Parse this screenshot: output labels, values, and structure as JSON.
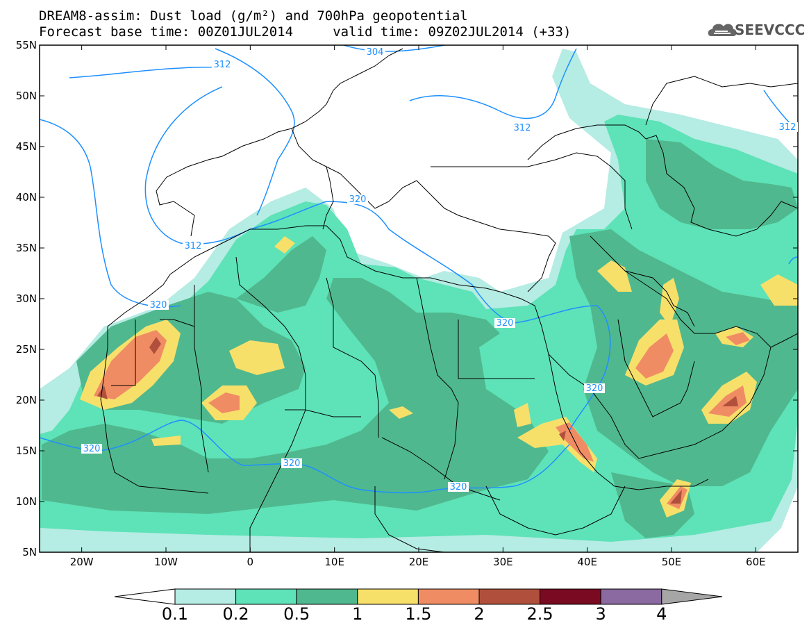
{
  "header": {
    "title_line1": "DREAM8-assim: Dust load (g/m²) and 700hPa geopotential",
    "title_line2": "Forecast base time: 00Z01JUL2014     valid time: 09Z02JUL2014 (+33)",
    "logo_text": "SEEVCCC",
    "logo_icon": "cloud-icon"
  },
  "map": {
    "lon_range": [
      -25,
      65
    ],
    "lat_range": [
      5,
      55
    ],
    "lat_ticks": [
      "55N",
      "50N",
      "45N",
      "40N",
      "35N",
      "30N",
      "25N",
      "20N",
      "15N",
      "10N",
      "5N"
    ],
    "lon_ticks": [
      "20W",
      "10W",
      "0",
      "10E",
      "20E",
      "30E",
      "40E",
      "50E",
      "60E"
    ],
    "contour_labels": [
      "304",
      "312",
      "312",
      "312",
      "312",
      "320",
      "320",
      "320",
      "320",
      "320",
      "320",
      "320"
    ]
  },
  "colorbar": {
    "levels": [
      "0.1",
      "0.2",
      "0.5",
      "1",
      "1.5",
      "2",
      "2.5",
      "3",
      "4"
    ],
    "colors": [
      "#ffffff",
      "#b5ece3",
      "#5ee2b8",
      "#50b88e",
      "#f7e06a",
      "#f08c64",
      "#b0503c",
      "#7a0a22",
      "#8a6aa0",
      "#a6a6a6"
    ]
  }
}
